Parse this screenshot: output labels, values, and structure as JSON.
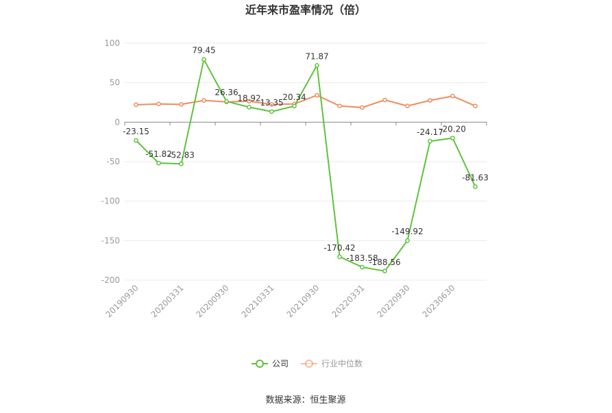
{
  "chart_data": {
    "type": "line",
    "title": "近年来市盈率情况（倍）",
    "xlabel": "",
    "ylabel": "",
    "ylim": [
      -200,
      100
    ],
    "yticks": [
      100,
      50,
      0,
      -50,
      -100,
      -150,
      -200
    ],
    "x_tick_labels": [
      "20190930",
      "20200331",
      "20200930",
      "20210331",
      "20210930",
      "20220331",
      "20220930",
      "20230630"
    ],
    "x_tick_label_point_index": [
      0,
      2,
      4,
      6,
      8,
      10,
      12,
      14
    ],
    "point_count": 16,
    "grid": true,
    "legend_position": "bottom",
    "series": [
      {
        "name": "公司",
        "color": "#5dc23a",
        "values": [
          -23.15,
          -51.82,
          -52.83,
          79.45,
          26.36,
          18.92,
          13.35,
          20.34,
          71.87,
          -170.42,
          -183.58,
          -188.56,
          -149.92,
          -24.17,
          -20.2,
          -81.63
        ],
        "labels": [
          "-23.15",
          "-51.82",
          "-52.83",
          "79.45",
          "26.36",
          "18.92",
          "13.35",
          "20.34",
          "71.87",
          "-170.42",
          "-183.58",
          "-188.56",
          "-149.92",
          "-24.17",
          "-20.20",
          "-81.63"
        ]
      },
      {
        "name": "行业中位数",
        "color": "#f08a5d",
        "values": [
          22,
          23,
          22.5,
          27.5,
          25.5,
          26.5,
          22.5,
          23,
          34,
          20.5,
          18.5,
          28,
          20.5,
          27.5,
          33,
          20.5
        ]
      }
    ]
  },
  "source": "数据来源：恒生聚源"
}
